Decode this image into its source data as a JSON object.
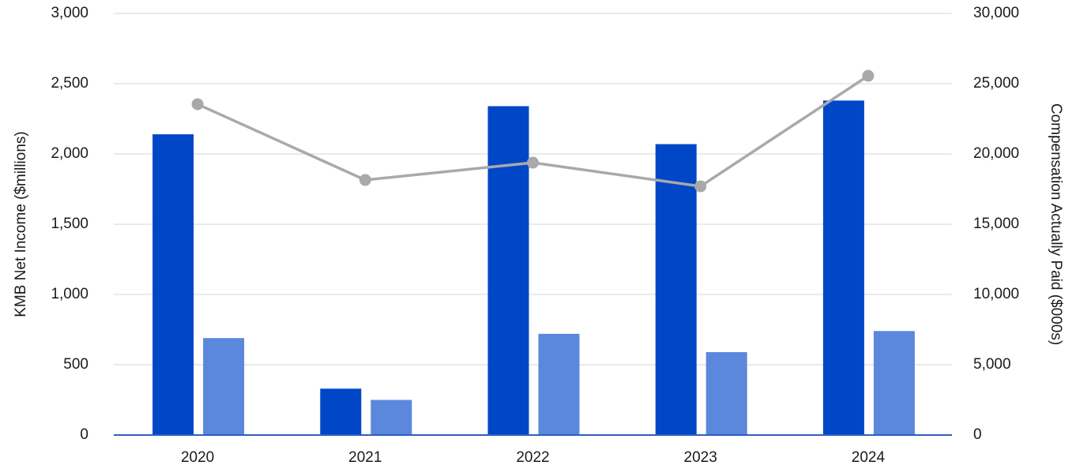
{
  "chart_data": {
    "type": "bar",
    "categories": [
      "2020",
      "2021",
      "2022",
      "2023",
      "2024"
    ],
    "series": [
      {
        "type": "bar",
        "axis": "y2",
        "color": "#0047c8",
        "values": [
          21400,
          3300,
          23400,
          20700,
          23800
        ]
      },
      {
        "type": "bar",
        "axis": "y2",
        "color": "#5b87dc",
        "values": [
          6900,
          2500,
          7200,
          5900,
          7400
        ]
      },
      {
        "type": "line",
        "axis": "y",
        "color": "#a9a9a9",
        "values": [
          2354,
          1815,
          1938,
          1770,
          2556
        ]
      }
    ],
    "y_label": "KMB Net Income ($millions)",
    "y2_label": "Compensation Actually Paid ($000s)",
    "ylim": [
      0,
      3000
    ],
    "yticks": [
      0,
      500,
      {
        "value": 1000,
        "label": "1,000"
      },
      {
        "value": 1500,
        "label": "1,500"
      },
      {
        "value": 2000,
        "label": "2,000"
      },
      {
        "value": 2500,
        "label": "2,500"
      },
      {
        "value": 3000,
        "label": "3,000"
      }
    ],
    "y2lim": [
      0,
      30000
    ],
    "y2ticks": [
      0,
      {
        "value": 5000,
        "label": "5,000"
      },
      {
        "value": 10000,
        "label": "10,000"
      },
      {
        "value": 15000,
        "label": "15,000"
      },
      {
        "value": 20000,
        "label": "20,000"
      },
      {
        "value": 25000,
        "label": "25,000"
      },
      {
        "value": 30000,
        "label": "30,000"
      }
    ],
    "grid": true
  }
}
